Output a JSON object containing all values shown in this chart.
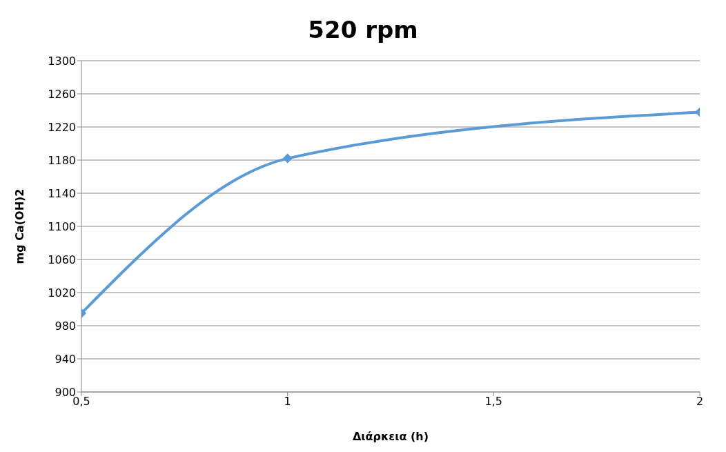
{
  "chart_data": {
    "type": "line",
    "title": "520 rpm",
    "xlabel": "Διάρκεια (h)",
    "ylabel": "mg Ca(OH)2",
    "x": [
      0.5,
      1,
      2
    ],
    "series": [
      {
        "color": "#5b9bd5",
        "values": [
          995,
          1182,
          1238
        ]
      }
    ],
    "xlim": [
      0.5,
      2
    ],
    "xticks": [
      {
        "value": 0.5,
        "label": "0,5"
      },
      1,
      {
        "value": 1.5,
        "label": "1,5"
      },
      2
    ],
    "ylim": [
      900,
      1300
    ],
    "yticks": [
      900,
      940,
      980,
      1020,
      1060,
      1100,
      1140,
      1180,
      1220,
      1260,
      1300
    ],
    "grid": "y",
    "marker": "diamond",
    "line_style": "solid",
    "legend": false
  }
}
